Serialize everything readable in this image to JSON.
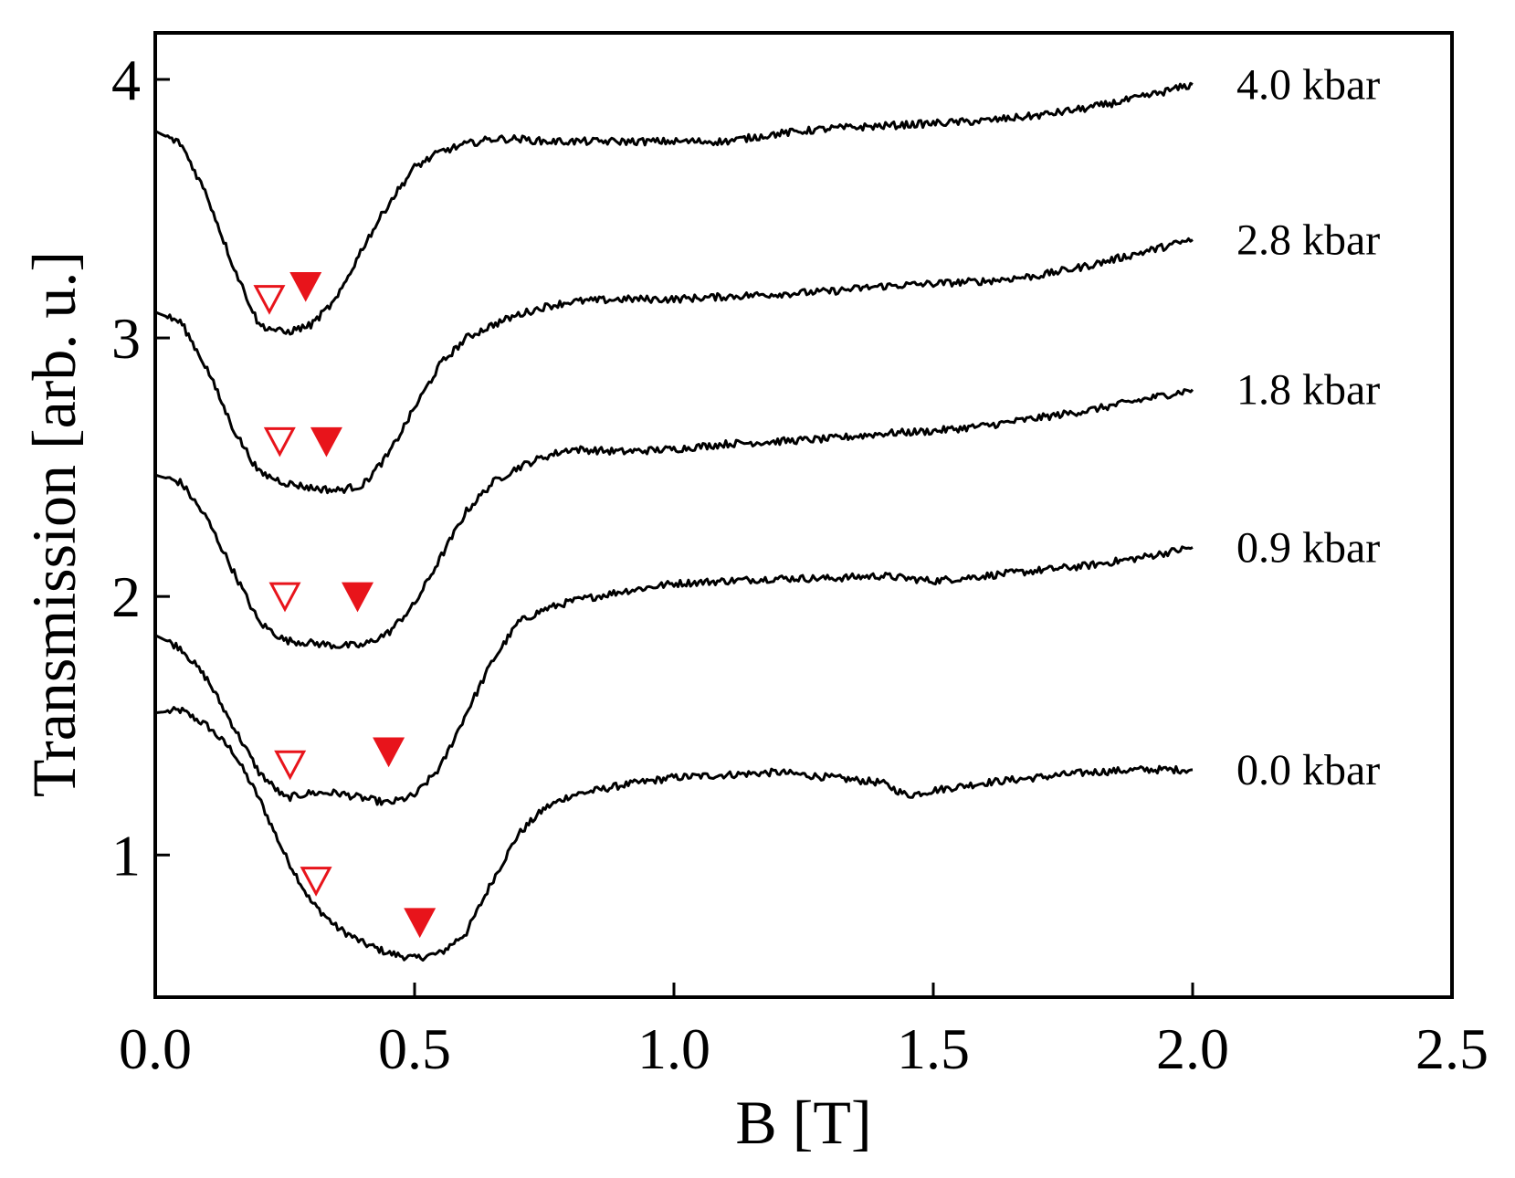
{
  "chart_data": {
    "type": "line",
    "xlabel": "B [T]",
    "ylabel": "Transmission [arb. u.]",
    "xlim": [
      0.0,
      2.5
    ],
    "ylim": [
      0.45,
      4.18
    ],
    "xticks": [
      0.0,
      0.5,
      1.0,
      1.5,
      2.0,
      2.5
    ],
    "xtick_labels": [
      "0.0",
      "0.5",
      "1.0",
      "1.5",
      "2.0",
      "2.5"
    ],
    "yticks": [
      1,
      2,
      3,
      4
    ],
    "ytick_labels": [
      "1",
      "2",
      "3",
      "4"
    ],
    "grid": false,
    "legend": "none",
    "colors": {
      "line": "#000000",
      "marker": "#e8141b"
    },
    "series": [
      {
        "name": "0.0 kbar",
        "x": [
          0.0,
          0.05,
          0.1,
          0.15,
          0.2,
          0.25,
          0.3,
          0.35,
          0.4,
          0.45,
          0.5,
          0.55,
          0.6,
          0.65,
          0.7,
          0.75,
          0.8,
          0.9,
          1.0,
          1.1,
          1.2,
          1.3,
          1.4,
          1.45,
          1.5,
          1.6,
          1.7,
          1.8,
          1.9,
          2.0
        ],
        "y": [
          1.55,
          1.56,
          1.5,
          1.4,
          1.22,
          1.0,
          0.82,
          0.72,
          0.66,
          0.62,
          0.6,
          0.62,
          0.7,
          0.9,
          1.08,
          1.18,
          1.23,
          1.27,
          1.3,
          1.31,
          1.32,
          1.3,
          1.28,
          1.23,
          1.25,
          1.28,
          1.3,
          1.32,
          1.33,
          1.33
        ]
      },
      {
        "name": "0.9 kbar",
        "x": [
          0.0,
          0.05,
          0.1,
          0.15,
          0.2,
          0.25,
          0.3,
          0.35,
          0.4,
          0.45,
          0.5,
          0.55,
          0.6,
          0.65,
          0.7,
          0.75,
          0.8,
          0.9,
          1.0,
          1.1,
          1.2,
          1.3,
          1.4,
          1.5,
          1.6,
          1.7,
          1.8,
          1.9,
          2.0
        ],
        "y": [
          1.85,
          1.8,
          1.68,
          1.5,
          1.32,
          1.22,
          1.24,
          1.24,
          1.22,
          1.2,
          1.23,
          1.34,
          1.55,
          1.75,
          1.9,
          1.95,
          1.98,
          2.02,
          2.05,
          2.06,
          2.07,
          2.07,
          2.08,
          2.06,
          2.08,
          2.1,
          2.12,
          2.15,
          2.19
        ]
      },
      {
        "name": "1.8 kbar",
        "x": [
          0.0,
          0.05,
          0.1,
          0.15,
          0.2,
          0.25,
          0.3,
          0.35,
          0.4,
          0.45,
          0.5,
          0.55,
          0.6,
          0.65,
          0.7,
          0.75,
          0.8,
          0.9,
          1.0,
          1.1,
          1.2,
          1.3,
          1.4,
          1.5,
          1.6,
          1.7,
          1.8,
          1.9,
          2.0
        ],
        "y": [
          2.47,
          2.44,
          2.3,
          2.1,
          1.9,
          1.83,
          1.82,
          1.81,
          1.81,
          1.86,
          1.97,
          2.15,
          2.33,
          2.44,
          2.5,
          2.54,
          2.57,
          2.56,
          2.57,
          2.59,
          2.6,
          2.61,
          2.63,
          2.64,
          2.66,
          2.69,
          2.72,
          2.76,
          2.8
        ]
      },
      {
        "name": "2.8 kbar",
        "x": [
          0.0,
          0.05,
          0.1,
          0.15,
          0.2,
          0.25,
          0.3,
          0.35,
          0.4,
          0.45,
          0.5,
          0.55,
          0.6,
          0.65,
          0.7,
          0.75,
          0.8,
          0.9,
          1.0,
          1.1,
          1.2,
          1.3,
          1.4,
          1.5,
          1.6,
          1.7,
          1.8,
          1.9,
          2.0
        ],
        "y": [
          3.1,
          3.06,
          2.88,
          2.65,
          2.48,
          2.44,
          2.42,
          2.41,
          2.43,
          2.55,
          2.73,
          2.9,
          3.0,
          3.05,
          3.09,
          3.12,
          3.14,
          3.15,
          3.15,
          3.16,
          3.17,
          3.18,
          3.2,
          3.21,
          3.22,
          3.24,
          3.28,
          3.33,
          3.38
        ]
      },
      {
        "name": "4.0 kbar",
        "x": [
          0.0,
          0.05,
          0.1,
          0.15,
          0.2,
          0.25,
          0.3,
          0.35,
          0.4,
          0.45,
          0.5,
          0.55,
          0.6,
          0.65,
          0.7,
          0.75,
          0.8,
          0.9,
          1.0,
          1.1,
          1.2,
          1.3,
          1.4,
          1.5,
          1.6,
          1.7,
          1.8,
          1.9,
          2.0
        ],
        "y": [
          3.8,
          3.75,
          3.55,
          3.28,
          3.05,
          3.02,
          3.05,
          3.15,
          3.35,
          3.52,
          3.66,
          3.72,
          3.75,
          3.77,
          3.77,
          3.76,
          3.76,
          3.76,
          3.76,
          3.76,
          3.79,
          3.81,
          3.82,
          3.83,
          3.84,
          3.86,
          3.89,
          3.93,
          3.98
        ]
      }
    ],
    "markers": [
      {
        "series": "4.0 kbar",
        "open": [
          0.22,
          3.15
        ],
        "filled": [
          0.29,
          3.2
        ]
      },
      {
        "series": "2.8 kbar",
        "open": [
          0.24,
          2.6
        ],
        "filled": [
          0.33,
          2.6
        ]
      },
      {
        "series": "1.8 kbar",
        "open": [
          0.25,
          2.0
        ],
        "filled": [
          0.39,
          2.0
        ]
      },
      {
        "series": "0.9 kbar",
        "open": [
          0.26,
          1.35
        ],
        "filled": [
          0.45,
          1.4
        ]
      },
      {
        "series": "0.0 kbar",
        "open": [
          0.31,
          0.9
        ],
        "filled": [
          0.51,
          0.74
        ]
      }
    ]
  }
}
